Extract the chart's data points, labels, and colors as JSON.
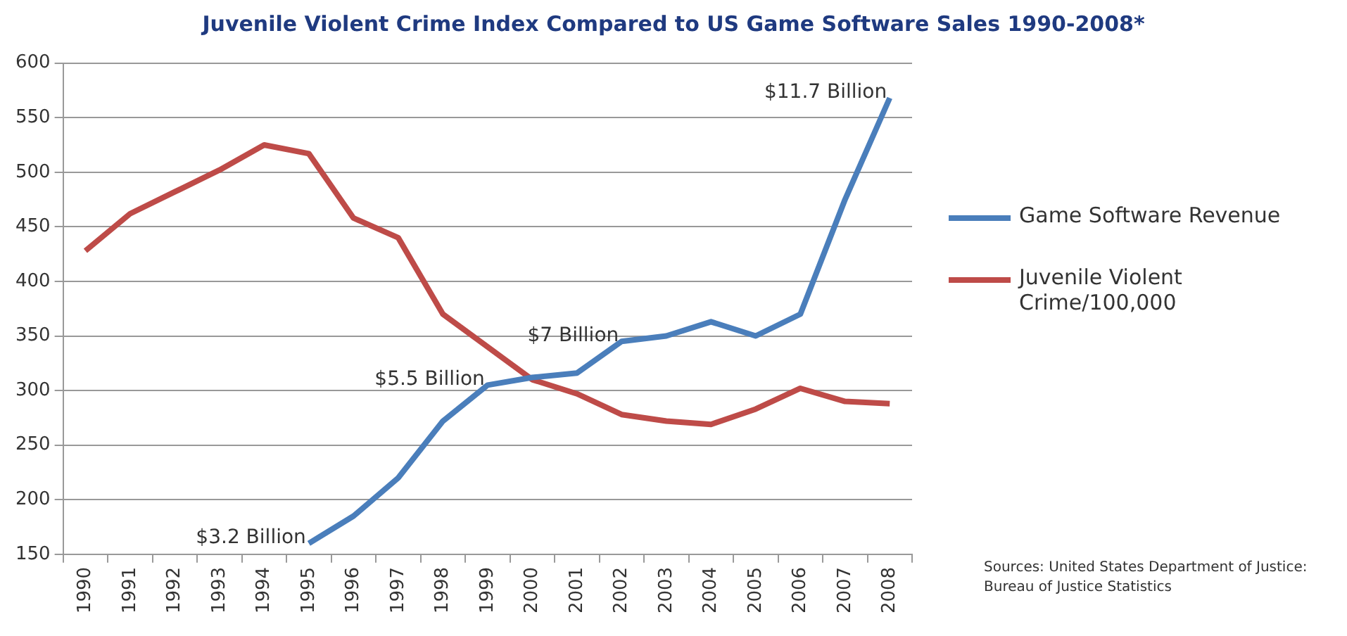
{
  "chart_data": {
    "type": "line",
    "title": "Juvenile Violent Crime Index Compared to US Game Software Sales 1990-2008*",
    "categories": [
      "1990",
      "1991",
      "1992",
      "1993",
      "1994",
      "1995",
      "1996",
      "1997",
      "1998",
      "1999",
      "2000",
      "2001",
      "2002",
      "2003",
      "2004",
      "2005",
      "2006",
      "2007",
      "2008"
    ],
    "series": [
      {
        "name": "Game Software  Revenue",
        "color": "#4a7ebb",
        "values": [
          null,
          null,
          null,
          null,
          null,
          160,
          185,
          220,
          272,
          305,
          312,
          316,
          345,
          350,
          363,
          350,
          370,
          475,
          568
        ]
      },
      {
        "name": "Juvenile Violent Crime/100,000",
        "color": "#be4b48",
        "values": [
          428,
          462,
          482,
          502,
          525,
          517,
          458,
          440,
          370,
          340,
          310,
          297,
          278,
          272,
          269,
          283,
          302,
          290,
          288
        ]
      }
    ],
    "ylim": [
      150,
      600
    ],
    "yticks": [
      150,
      200,
      250,
      300,
      350,
      400,
      450,
      500,
      550,
      600
    ],
    "grid": "y",
    "legend": "right",
    "marker": "none",
    "line_style": "solid",
    "annotations": [
      {
        "text": "$3.2 Billion",
        "x": "1995",
        "y": 160
      },
      {
        "text": "$5.5 Billion",
        "x": "1999",
        "y": 305
      },
      {
        "text": "$7 Billion",
        "x": "2002",
        "y": 345
      },
      {
        "text": "$11.7 Billion",
        "x": "2008",
        "y": 568
      },
      "Sources: United States Department of Justice: Bureau of Justice Statistics"
    ]
  }
}
